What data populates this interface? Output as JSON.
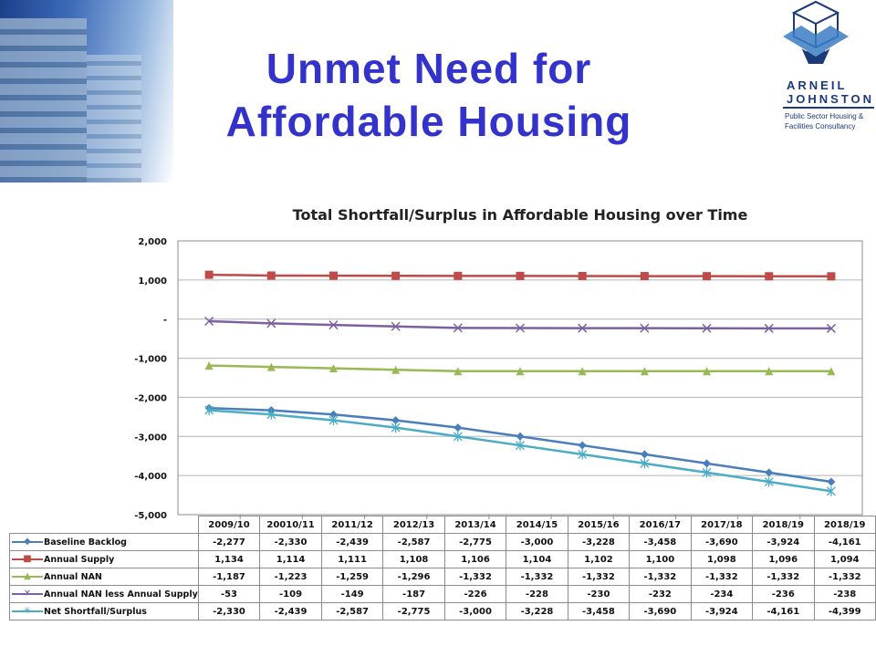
{
  "title_line1": "Unmet Need for",
  "title_line2": "Affordable Housing",
  "logo": {
    "name_line1": "ARNEIL",
    "name_line2": "JOHNSTON",
    "tagline_line1": "Public Sector Housing &",
    "tagline_line2": "Facilities Consultancy"
  },
  "chart_data": {
    "type": "line",
    "title": "Total Shortfall/Surplus in Affordable Housing over Time",
    "categories": [
      "2009/10",
      "20010/11",
      "2011/12",
      "2012/13",
      "2013/14",
      "2014/15",
      "2015/16",
      "2016/17",
      "2017/18",
      "2018/19",
      "2018/19"
    ],
    "ylim": [
      -5000,
      2000
    ],
    "yticks": [
      2000,
      1000,
      0,
      -1000,
      -2000,
      -3000,
      -4000,
      -5000
    ],
    "ytick_labels": [
      "2,000",
      "1,000",
      "-",
      "-1,000",
      "-2,000",
      "-3,000",
      "-4,000",
      "-5,000"
    ],
    "grid": true,
    "legend": "data-table",
    "series": [
      {
        "name": "Baseline Backlog",
        "color": "#4a7ebb",
        "marker": "diamond",
        "values": [
          -2277,
          -2330,
          -2439,
          -2587,
          -2775,
          -3000,
          -3228,
          -3458,
          -3690,
          -3924,
          -4161
        ],
        "labels": [
          "-2,277",
          "-2,330",
          "-2,439",
          "-2,587",
          "-2,775",
          "-3,000",
          "-3,228",
          "-3,458",
          "-3,690",
          "-3,924",
          "-4,161"
        ]
      },
      {
        "name": "Annual Supply",
        "color": "#be4b48",
        "marker": "square",
        "values": [
          1134,
          1114,
          1111,
          1108,
          1106,
          1104,
          1102,
          1100,
          1098,
          1096,
          1094
        ],
        "labels": [
          "1,134",
          "1,114",
          "1,111",
          "1,108",
          "1,106",
          "1,104",
          "1,102",
          "1,100",
          "1,098",
          "1,096",
          "1,094"
        ]
      },
      {
        "name": "Annual NAN",
        "color": "#98b954",
        "marker": "triangle",
        "values": [
          -1187,
          -1223,
          -1259,
          -1296,
          -1332,
          -1332,
          -1332,
          -1332,
          -1332,
          -1332,
          -1332
        ],
        "labels": [
          "-1,187",
          "-1,223",
          "-1,259",
          "-1,296",
          "-1,332",
          "-1,332",
          "-1,332",
          "-1,332",
          "-1,332",
          "-1,332",
          "-1,332"
        ]
      },
      {
        "name": "Annual NAN less Annual Supply",
        "color": "#7d60a0",
        "marker": "x",
        "values": [
          -53,
          -109,
          -149,
          -187,
          -226,
          -228,
          -230,
          -232,
          -234,
          -236,
          -238
        ],
        "labels": [
          "-53",
          "-109",
          "-149",
          "-187",
          "-226",
          "-228",
          "-230",
          "-232",
          "-234",
          "-236",
          "-238"
        ]
      },
      {
        "name": "Net Shortfall/Surplus",
        "color": "#4bacc6",
        "marker": "star",
        "values": [
          -2330,
          -2439,
          -2587,
          -2775,
          -3000,
          -3228,
          -3458,
          -3690,
          -3924,
          -4161,
          -4399
        ],
        "labels": [
          "-2,330",
          "-2,439",
          "-2,587",
          "-2,775",
          "-3,000",
          "-3,228",
          "-3,458",
          "-3,690",
          "-3,924",
          "-4,161",
          "-4,399"
        ]
      }
    ]
  }
}
